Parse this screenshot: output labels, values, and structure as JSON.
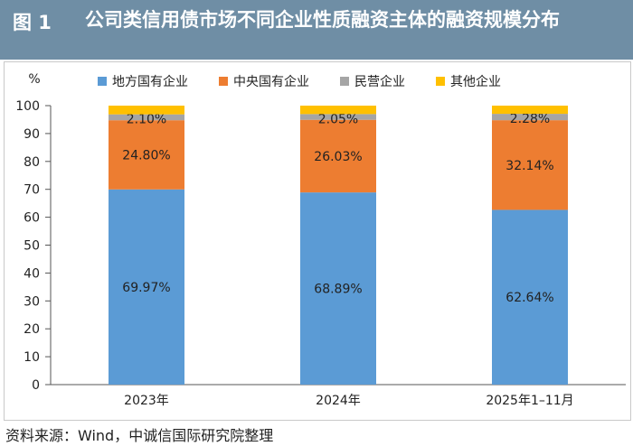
{
  "title": {
    "label": "图 1",
    "text": "公司类信用债市场不同企业性质融资主体的融资规模分布"
  },
  "source": "资料来源：Wind，中诚信国际研究院整理",
  "colors": {
    "local_soe": "#5b9bd5",
    "central_soe": "#ed7d31",
    "private": "#a5a5a5",
    "other": "#ffc000"
  },
  "chart_data": {
    "type": "bar",
    "stacked": true,
    "ylabel": "%",
    "ylim": [
      0,
      100
    ],
    "yticks": [
      0,
      10,
      20,
      30,
      40,
      50,
      60,
      70,
      80,
      90,
      100
    ],
    "categories": [
      "2023年",
      "2024年",
      "2025年1–11月"
    ],
    "series": [
      {
        "name": "地方国有企业",
        "color_key": "local_soe",
        "values": [
          69.97,
          68.89,
          62.64
        ],
        "labels": [
          "69.97%",
          "68.89%",
          "62.64%"
        ]
      },
      {
        "name": "中央国有企业",
        "color_key": "central_soe",
        "values": [
          24.8,
          26.03,
          32.14
        ],
        "labels": [
          "24.80%",
          "26.03%",
          "32.14%"
        ]
      },
      {
        "name": "民营企业",
        "color_key": "private",
        "values": [
          2.1,
          2.05,
          2.28
        ],
        "labels": [
          "2.10%",
          "2.05%",
          "2.28%"
        ]
      },
      {
        "name": "其他企业",
        "color_key": "other",
        "values": [
          3.13,
          3.03,
          2.94
        ],
        "labels": [
          "",
          "",
          ""
        ]
      }
    ],
    "legend_position": "top"
  }
}
